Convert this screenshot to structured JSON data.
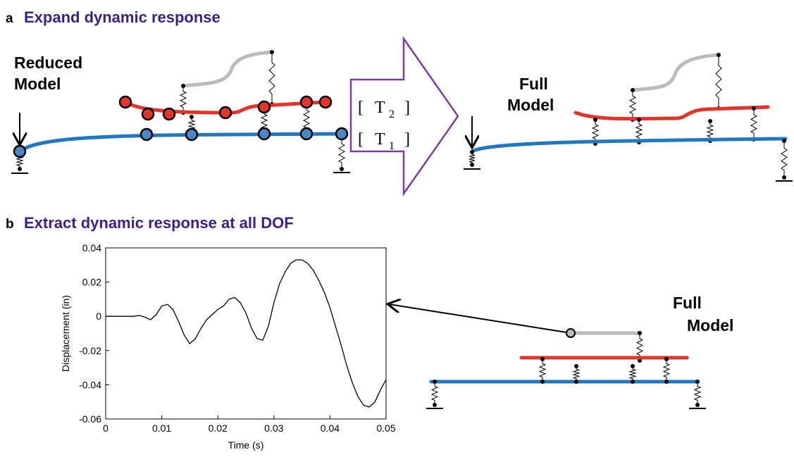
{
  "panel_a": {
    "letter": "a",
    "title": "Expand dynamic response",
    "reduced_model_label": [
      "Reduced",
      "Model"
    ],
    "transformations": [
      {
        "symbol": "T",
        "subscript": "2"
      },
      {
        "symbol": "T",
        "subscript": "1"
      }
    ],
    "full_model_label": [
      "Full",
      "Model"
    ]
  },
  "panel_b": {
    "letter": "b",
    "title": "Extract dynamic response at all DOF",
    "full_model_label": [
      "Full",
      "Model"
    ]
  },
  "chart_data": {
    "type": "line",
    "xlabel": "Time (s)",
    "ylabel": "Displacement (in)",
    "x": [
      0,
      0.001,
      0.002,
      0.003,
      0.004,
      0.005,
      0.006,
      0.007,
      0.008,
      0.009,
      0.01,
      0.011,
      0.012,
      0.013,
      0.014,
      0.015,
      0.016,
      0.017,
      0.018,
      0.019,
      0.02,
      0.021,
      0.022,
      0.023,
      0.024,
      0.025,
      0.026,
      0.027,
      0.028,
      0.029,
      0.03,
      0.031,
      0.032,
      0.033,
      0.034,
      0.035,
      0.036,
      0.037,
      0.038,
      0.039,
      0.04,
      0.041,
      0.042,
      0.043,
      0.044,
      0.045,
      0.046,
      0.047,
      0.048,
      0.049,
      0.05
    ],
    "values": [
      0,
      0,
      0,
      0,
      0,
      0,
      0.0005,
      -0.0005,
      -0.002,
      0.001,
      0.006,
      0.007,
      0.004,
      -0.003,
      -0.011,
      -0.016,
      -0.013,
      -0.007,
      -0.002,
      0.001,
      0.004,
      0.006,
      0.01,
      0.011,
      0.008,
      0.002,
      -0.007,
      -0.013,
      -0.014,
      -0.006,
      0.008,
      0.019,
      0.026,
      0.031,
      0.033,
      0.033,
      0.031,
      0.027,
      0.021,
      0.014,
      0.005,
      -0.006,
      -0.017,
      -0.029,
      -0.039,
      -0.047,
      -0.052,
      -0.053,
      -0.05,
      -0.043,
      -0.037
    ],
    "color": "#000000",
    "xlim": [
      0,
      0.05
    ],
    "xticks": [
      0,
      0.01,
      0.02,
      0.03,
      0.04,
      0.05
    ],
    "ylim": [
      -0.06,
      0.04
    ],
    "yticks": [
      0.04,
      0.02,
      0,
      -0.02,
      -0.04,
      -0.06
    ]
  }
}
